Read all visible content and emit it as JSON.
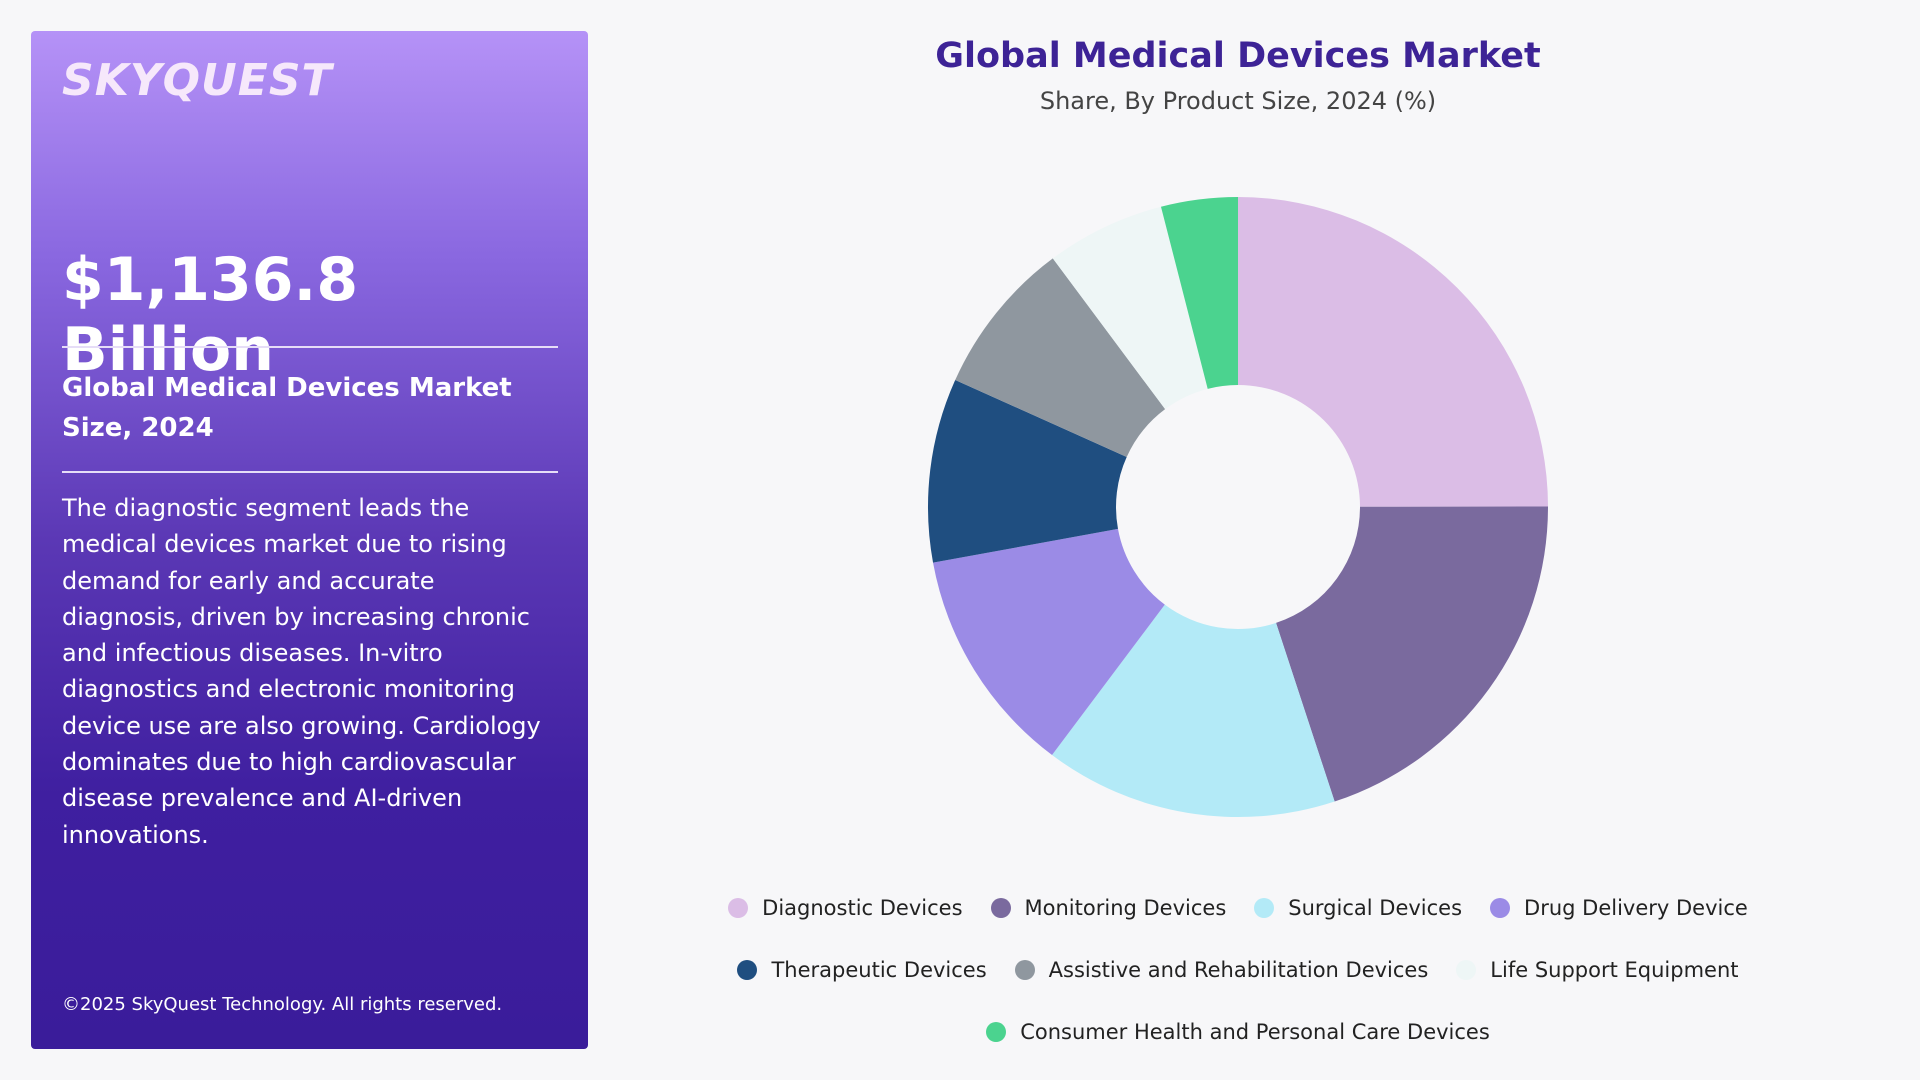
{
  "panel": {
    "logo": "SKYQUEST",
    "value": "$1,136.8 Billion",
    "heading": "Global Medical Devices Market Size, 2024",
    "description": "The diagnostic segment leads the medical devices market due to rising demand for early and accurate diagnosis, driven by increasing chronic and infectious diseases. In-vitro diagnostics and electronic monitoring device use are also growing. Cardiology dominates due to high cardiovascular disease prevalence and AI-driven innovations.",
    "copyright": "©2025 SkyQuest Technology. All rights reserved."
  },
  "chart_data": {
    "type": "pie",
    "donut": true,
    "title": "Global Medical Devices Market",
    "subtitle": "Share, By Product Size, 2024 (%)",
    "categories": [
      "Diagnostic Devices",
      "Monitoring Devices",
      "Surgical Devices",
      "Drug Delivery Device",
      "Therapeutic Devices",
      "Assistive and Rehabilitation Devices",
      "Life Support Equipment",
      "Consumer Health and Personal Care Devices"
    ],
    "values": [
      25,
      20,
      15.3,
      11.9,
      9.6,
      8.1,
      6.2,
      4
    ],
    "colors": [
      "#dbbde6",
      "#7a6a9e",
      "#b3eaf7",
      "#9b8be6",
      "#1f4e80",
      "#8f979f",
      "#eef6f6",
      "#4bd38f"
    ],
    "legend_position": "bottom"
  }
}
